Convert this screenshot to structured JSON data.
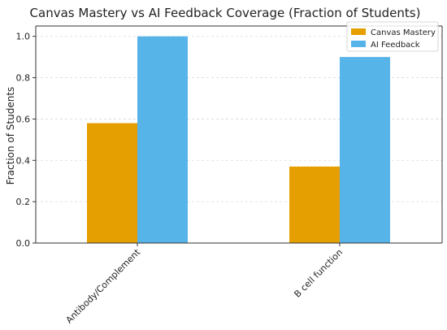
{
  "chart_data": {
    "type": "bar",
    "title": "Canvas Mastery vs AI Feedback Coverage (Fraction of Students)",
    "xlabel": "",
    "ylabel": "Fraction of Students",
    "categories": [
      "Antibody/Complement",
      "B cell function"
    ],
    "series": [
      {
        "name": "Canvas Mastery",
        "values": [
          0.58,
          0.37
        ],
        "color": "#E69F00"
      },
      {
        "name": "AI Feedback",
        "values": [
          1.0,
          0.9
        ],
        "color": "#56B4E9"
      }
    ],
    "ylim": [
      0,
      1.05
    ],
    "yticks": [
      "0.0",
      "0.2",
      "0.4",
      "0.6",
      "0.8",
      "1.0"
    ],
    "grid": true,
    "legend_position": "top-right"
  }
}
